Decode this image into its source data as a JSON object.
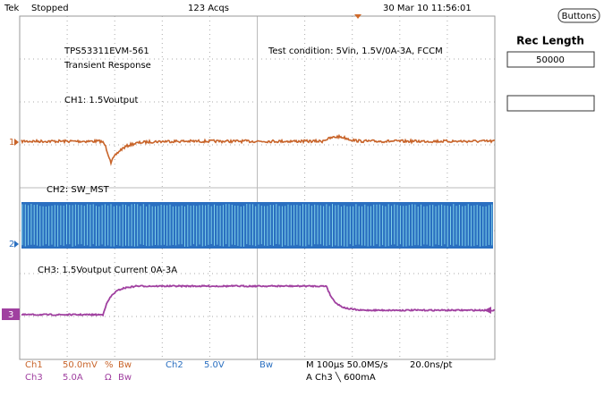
{
  "header": {
    "brand": "Tek",
    "status": "Stopped",
    "acquisitions": "123 Acqs",
    "timestamp": "30 Mar 10 11:56:01"
  },
  "annotations": [
    "TPS53311EVM-561",
    "Transient Response",
    "CH1: 1.5Voutput",
    "Test condition: 5Vin, 1.5V/0A-3A, FCCM",
    "CH2: SW_MST",
    "CH3: 1.5Voutput Current 0A-3A"
  ],
  "channel_markers": [
    "1",
    "2",
    "3"
  ],
  "side_panel": {
    "button": "Buttons",
    "rec_length_label": "Rec Length",
    "rec_length_value": "50000"
  },
  "footer": {
    "ch1": [
      "Ch1",
      "50.0mV",
      "%",
      "Bw"
    ],
    "ch2": [
      "Ch2",
      "5.0V",
      "Bw"
    ],
    "ch3": [
      "Ch3",
      "5.0A",
      "Ω",
      "Bw"
    ],
    "timebase": [
      "M 100µs 50.0MS/s",
      "20.0ns/pt"
    ],
    "trigger": "A  Ch3  ╲  600mA"
  }
}
